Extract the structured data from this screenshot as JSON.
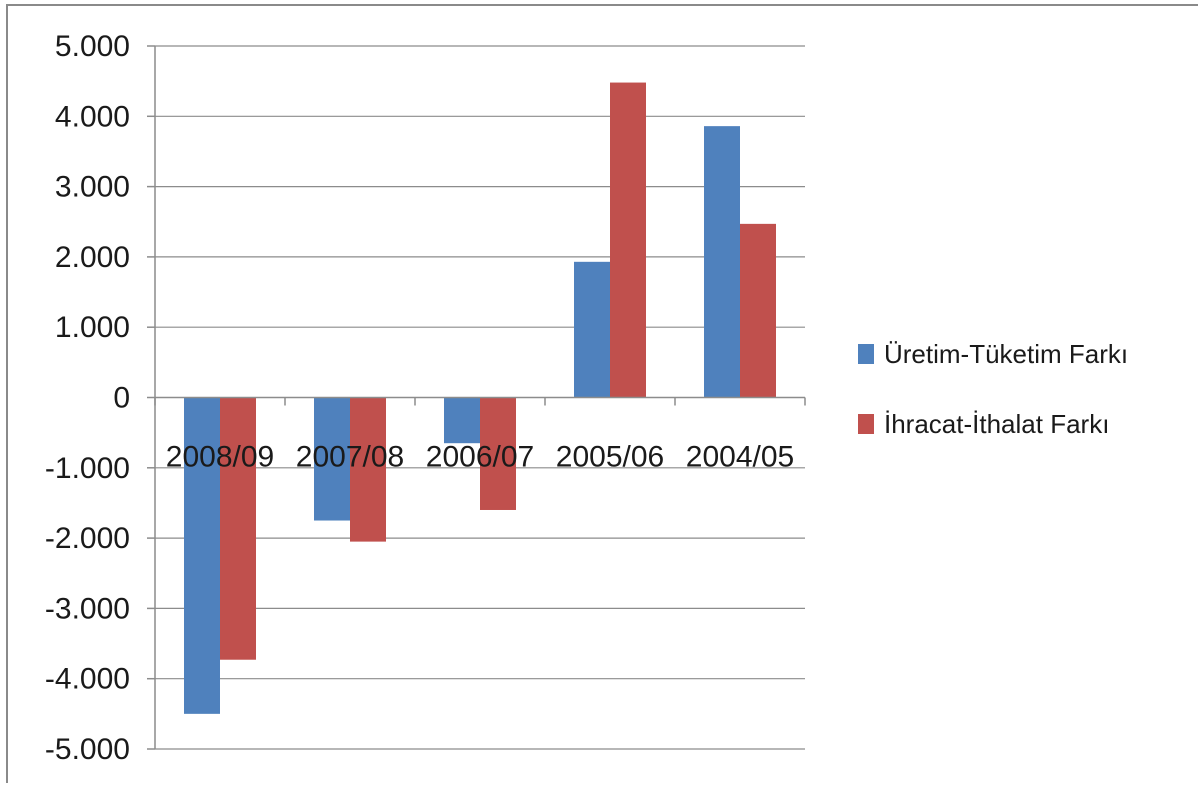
{
  "chart_data": {
    "type": "bar",
    "categories": [
      "2008/09",
      "2007/08",
      "2006/07",
      "2005/06",
      "2004/05"
    ],
    "series": [
      {
        "name": "Üretim-Tüketim Farkı",
        "color": "#4f81bd",
        "values": [
          -4500,
          -1750,
          -650,
          1930,
          3860
        ]
      },
      {
        "name": "İhracat-İthalat Farkı",
        "color": "#c0504d",
        "values": [
          -3730,
          -2050,
          -1600,
          4480,
          2470
        ]
      }
    ],
    "ylim": [
      -5000,
      5000
    ],
    "yticks": [
      5000,
      4000,
      3000,
      2000,
      1000,
      0,
      -1000,
      -2000,
      -3000,
      -4000,
      -5000
    ],
    "ytick_labels": [
      "5.000",
      "4.000",
      "3.000",
      "2.000",
      "1.000",
      "0",
      "-1.000",
      "-2.000",
      "-3.000",
      "-4.000",
      "-5.000"
    ],
    "grid": true,
    "legend": "right",
    "title": "",
    "xlabel": "",
    "ylabel": ""
  }
}
